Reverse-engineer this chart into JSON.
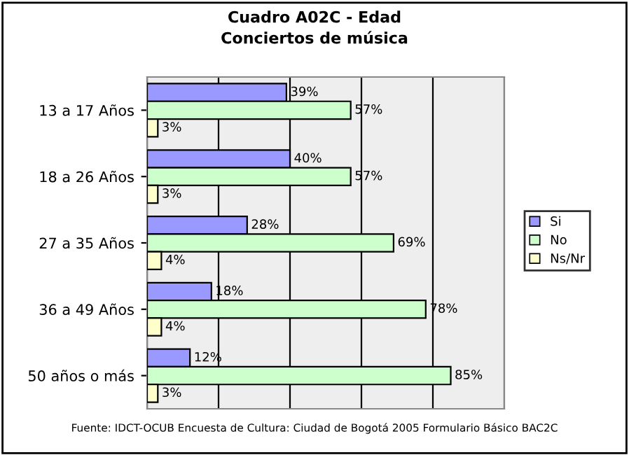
{
  "chart_data": {
    "type": "bar",
    "orientation": "horizontal",
    "title": "Cuadro A02C - Edad",
    "subtitle": "Conciertos de música",
    "categories": [
      "13 a 17 Años",
      "18 a 26 Años",
      "27 a 35 Años",
      "36 a 49 Años",
      "50 años o más"
    ],
    "series": [
      {
        "name": "Si",
        "color": "#9999ff",
        "values": [
          39,
          40,
          28,
          18,
          12
        ],
        "value_labels": [
          "39%",
          "40%",
          "28%",
          "18%",
          "12%"
        ]
      },
      {
        "name": "No",
        "color": "#ccffcc",
        "values": [
          57,
          57,
          69,
          78,
          85
        ],
        "value_labels": [
          "57%",
          "57%",
          "69%",
          "78%",
          "85%"
        ]
      },
      {
        "name": "Ns/Nr",
        "color": "#ffffcc",
        "values": [
          3,
          3,
          4,
          4,
          3
        ],
        "value_labels": [
          "3%",
          "3%",
          "4%",
          "4%",
          "3%"
        ]
      }
    ],
    "xlim": [
      0,
      100
    ],
    "xticks": [
      {
        "value": 0,
        "label": null
      },
      {
        "value": 20,
        "label": null
      },
      {
        "value": 40,
        "label": null
      },
      {
        "value": 60,
        "label": null
      },
      {
        "value": 80,
        "label": null
      },
      {
        "value": 100,
        "label": null
      }
    ],
    "tick_labels": "y",
    "grid": "x",
    "legend": "right",
    "annotations": [
      "Fuente: IDCT-OCUB Encuesta de Cultura: Ciudad de Bogotá 2005 Formulario Básico BAC2C"
    ]
  }
}
